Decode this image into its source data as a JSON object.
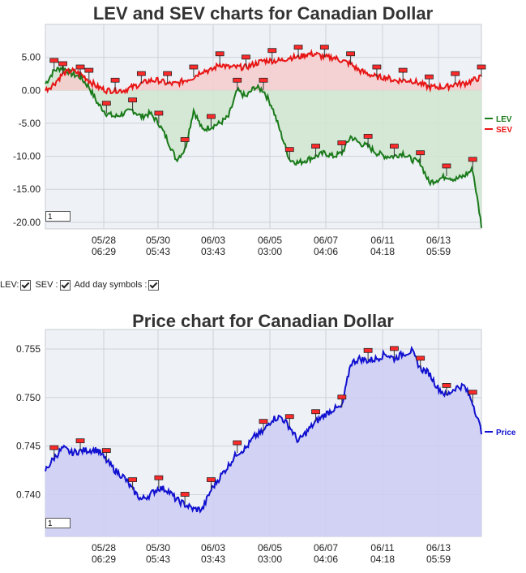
{
  "colors": {
    "lev": "#1a7a1a",
    "sev": "#e81515",
    "price": "#1010d0",
    "lev_fill": "#cfe6cf",
    "sev_fill": "#f4cccc",
    "price_fill": "#ccccf5",
    "plot_bg": "#eef2f7",
    "marker": "#ff2a2a"
  },
  "lev_chart": {
    "title": "LEV and SEV charts for Canadian Dollar",
    "zoom_value": "1",
    "legend": [
      "LEV",
      "SEV"
    ]
  },
  "price_chart": {
    "title": "Price chart for Canadian Dollar",
    "zoom_value": "1",
    "legend": [
      "Price"
    ]
  },
  "controls": {
    "lev_label": "LEV:",
    "sev_label": "SEV :",
    "day_symbols_label": "Add day symbols :"
  },
  "chart_data": [
    {
      "type": "line",
      "title": "LEV and SEV charts for Canadian Dollar",
      "x_ticks": [
        {
          "date": "05/28",
          "time": "06:29"
        },
        {
          "date": "05/30",
          "time": "05:43"
        },
        {
          "date": "06/03",
          "time": "03:43"
        },
        {
          "date": "06/05",
          "time": "03:00"
        },
        {
          "date": "06/07",
          "time": "04:06"
        },
        {
          "date": "06/11",
          "time": "04:18"
        },
        {
          "date": "06/13",
          "time": "05:59"
        }
      ],
      "y_ticks": [
        "5.00",
        "0.00",
        "-5.00",
        "-10.00",
        "-15.00",
        "-20.00"
      ],
      "ylim": [
        -21,
        10
      ],
      "grid": true,
      "legend_position": "right",
      "x": [
        0,
        2,
        4,
        6,
        8,
        10,
        12,
        14,
        16,
        18,
        20,
        22,
        24,
        26,
        28,
        30,
        32,
        34,
        36,
        38,
        40,
        42,
        44,
        46,
        48,
        50,
        52,
        54,
        56,
        58,
        60,
        62,
        64,
        66,
        68,
        70,
        72,
        74,
        76,
        78,
        80,
        82,
        84,
        86,
        88,
        90,
        92,
        94,
        96,
        98,
        100
      ],
      "series": [
        {
          "name": "LEV",
          "values": [
            1.0,
            3.0,
            3.5,
            2.5,
            2.0,
            0.5,
            -2.0,
            -3.5,
            -4.0,
            -3.5,
            -3.0,
            -4.0,
            -3.5,
            -5.0,
            -7.5,
            -10.5,
            -9.0,
            -3.0,
            -6.0,
            -5.5,
            -5.0,
            -4.0,
            0.0,
            -1.0,
            0.5,
            0.0,
            -2.5,
            -6.5,
            -10.5,
            -11.0,
            -10.5,
            -10.0,
            -9.5,
            -10.0,
            -9.5,
            -7.0,
            -8.0,
            -8.5,
            -9.5,
            -10.0,
            -10.0,
            -9.5,
            -10.5,
            -11.0,
            -14.0,
            -13.5,
            -13.0,
            -13.5,
            -13.0,
            -12.0,
            -20.5
          ]
        },
        {
          "name": "SEV",
          "values": [
            0.0,
            1.0,
            2.5,
            3.0,
            2.5,
            1.5,
            0.5,
            0.0,
            0.0,
            0.0,
            0.5,
            1.0,
            1.5,
            1.5,
            1.0,
            1.0,
            1.5,
            2.0,
            3.0,
            3.0,
            4.0,
            3.5,
            3.5,
            3.5,
            4.0,
            4.5,
            4.5,
            4.5,
            5.0,
            5.0,
            5.5,
            5.5,
            5.0,
            5.0,
            4.5,
            4.0,
            3.0,
            2.5,
            2.0,
            2.0,
            1.5,
            1.5,
            1.5,
            1.0,
            0.5,
            0.5,
            0.5,
            1.0,
            1.0,
            1.5,
            2.0
          ]
        }
      ]
    },
    {
      "type": "area",
      "title": "Price chart for Canadian Dollar",
      "x_ticks": [
        {
          "date": "05/28",
          "time": "06:29"
        },
        {
          "date": "05/30",
          "time": "05:43"
        },
        {
          "date": "06/03",
          "time": "03:43"
        },
        {
          "date": "06/05",
          "time": "03:00"
        },
        {
          "date": "06/07",
          "time": "04:06"
        },
        {
          "date": "06/11",
          "time": "04:18"
        },
        {
          "date": "06/13",
          "time": "05:59"
        }
      ],
      "y_ticks": [
        "0.755",
        "0.750",
        "0.745",
        "0.740"
      ],
      "ylim": [
        0.7357,
        0.757
      ],
      "grid": true,
      "legend_position": "right",
      "x": [
        0,
        2,
        4,
        6,
        8,
        10,
        12,
        14,
        16,
        18,
        20,
        22,
        24,
        26,
        28,
        30,
        32,
        34,
        36,
        38,
        40,
        42,
        44,
        46,
        48,
        50,
        52,
        54,
        56,
        58,
        60,
        62,
        64,
        66,
        68,
        70,
        72,
        74,
        76,
        78,
        80,
        82,
        84,
        86,
        88,
        90,
        92,
        94,
        96,
        98,
        100
      ],
      "series": [
        {
          "name": "Price",
          "values": [
            0.7425,
            0.7438,
            0.7448,
            0.7443,
            0.7445,
            0.7446,
            0.7446,
            0.7435,
            0.7425,
            0.7418,
            0.7405,
            0.7395,
            0.74,
            0.7407,
            0.7405,
            0.7395,
            0.739,
            0.7385,
            0.7385,
            0.7405,
            0.7418,
            0.743,
            0.7443,
            0.7448,
            0.746,
            0.7465,
            0.7478,
            0.748,
            0.747,
            0.7455,
            0.7465,
            0.7475,
            0.7482,
            0.7488,
            0.749,
            0.7535,
            0.754,
            0.7538,
            0.754,
            0.7545,
            0.754,
            0.7545,
            0.7548,
            0.753,
            0.7525,
            0.751,
            0.7502,
            0.751,
            0.7512,
            0.7495,
            0.7465
          ]
        }
      ]
    }
  ]
}
